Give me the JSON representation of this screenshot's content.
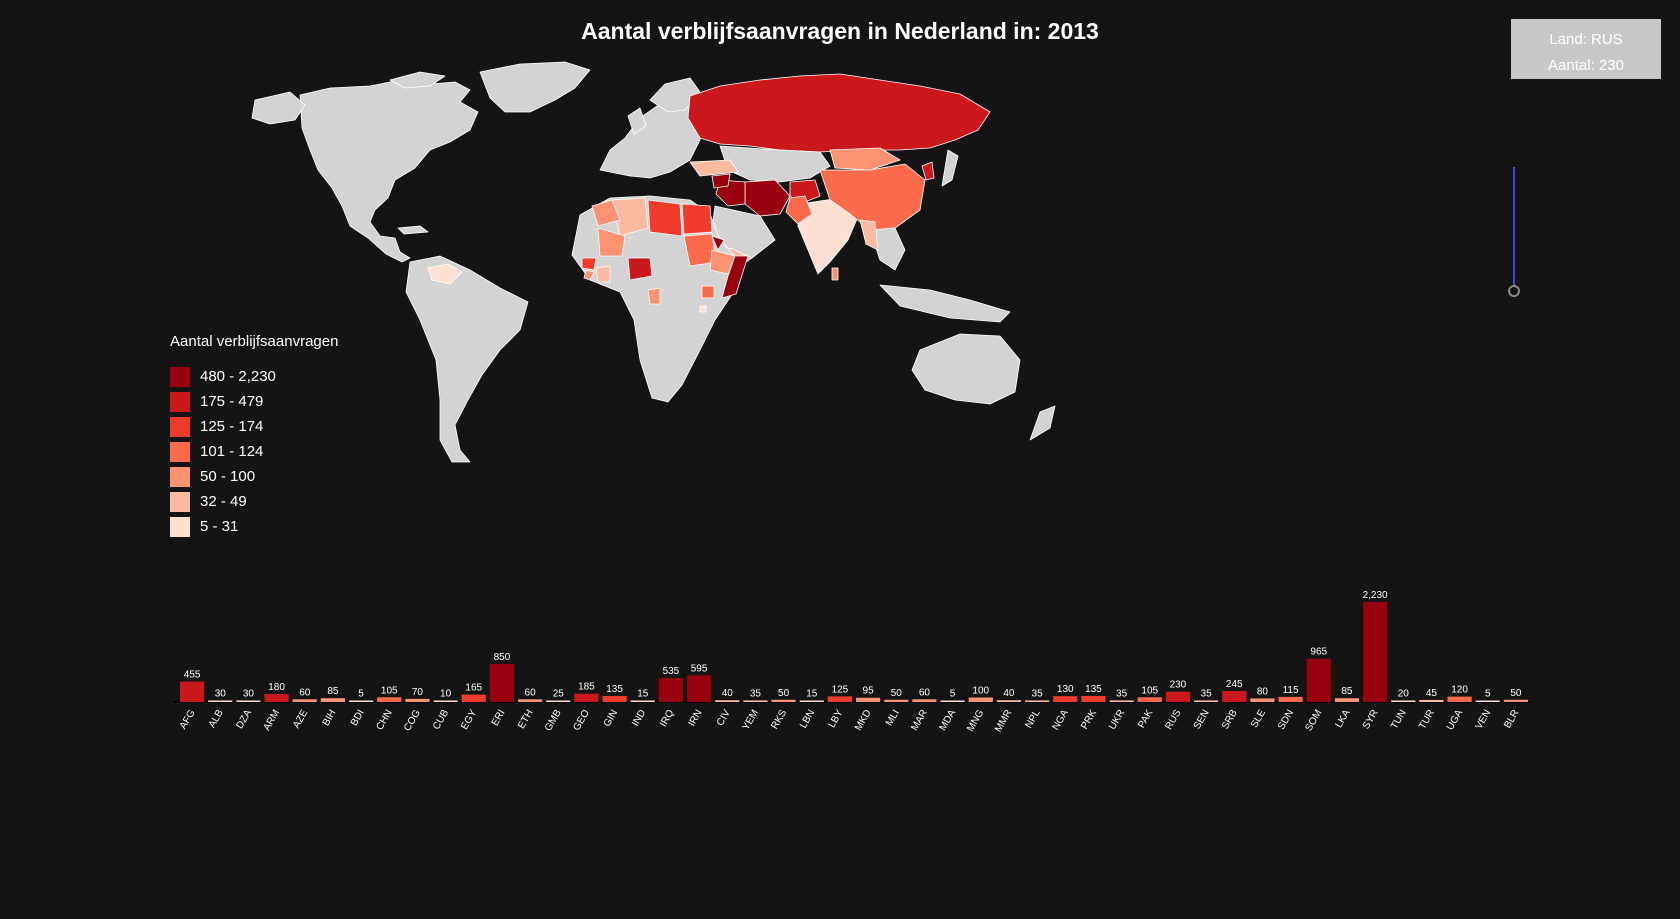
{
  "title": "Aantal verblijfsaanvragen in Nederland in: 2013",
  "tooltip": {
    "land": "Land: RUS",
    "aantal": "Aantal: 230"
  },
  "legend": {
    "title": "Aantal verblijfsaanvragen",
    "items": [
      {
        "label": "480 - 2,230",
        "color": "#99000d"
      },
      {
        "label": "175 - 479",
        "color": "#cb181d"
      },
      {
        "label": "125 - 174",
        "color": "#ef3b2c"
      },
      {
        "label": "101 - 124",
        "color": "#fb6a4a"
      },
      {
        "label": "50 - 100",
        "color": "#fc9272"
      },
      {
        "label": "32 - 49",
        "color": "#fcbba1"
      },
      {
        "label": "5 - 31",
        "color": "#fee0d2"
      }
    ]
  },
  "colors": {
    "no_data": "#d3d3d3",
    "background": "#141414",
    "slider": "#3a53d6"
  },
  "chart_data": {
    "type": "bar",
    "categories": [
      "AFG",
      "ALB",
      "DZA",
      "ARM",
      "AZE",
      "BIH",
      "BDI",
      "CHN",
      "COG",
      "CUB",
      "EGY",
      "ERI",
      "ETH",
      "GMB",
      "GEO",
      "GIN",
      "IND",
      "IRQ",
      "IRN",
      "CIV",
      "YEM",
      "RKS",
      "LBN",
      "LBY",
      "MKD",
      "MLI",
      "MAR",
      "MDA",
      "MNG",
      "MMR",
      "NPL",
      "NGA",
      "PRK",
      "UKR",
      "PAK",
      "RUS",
      "SEN",
      "SRB",
      "SLE",
      "SDN",
      "SOM",
      "LKA",
      "SYR",
      "TUN",
      "TUR",
      "UGA",
      "VEN",
      "BLR"
    ],
    "values": [
      455,
      30,
      30,
      180,
      60,
      85,
      5,
      105,
      70,
      10,
      165,
      850,
      60,
      25,
      185,
      135,
      15,
      535,
      595,
      40,
      35,
      50,
      15,
      125,
      95,
      50,
      60,
      5,
      100,
      40,
      35,
      130,
      135,
      35,
      105,
      230,
      35,
      245,
      80,
      115,
      965,
      85,
      2230,
      20,
      45,
      120,
      5,
      50
    ],
    "value_labels": [
      "455",
      "30",
      "30",
      "180",
      "60",
      "85",
      "5",
      "105",
      "70",
      "10",
      "165",
      "850",
      "60",
      "25",
      "185",
      "135",
      "15",
      "535",
      "595",
      "40",
      "35",
      "50",
      "15",
      "125",
      "95",
      "50",
      "60",
      "5",
      "100",
      "40",
      "35",
      "130",
      "135",
      "35",
      "105",
      "230",
      "35",
      "245",
      "80",
      "115",
      "965",
      "85",
      "2,230",
      "20",
      "45",
      "120",
      "5",
      "50"
    ],
    "ylim": [
      0,
      2230
    ],
    "color_scale": [
      480,
      175,
      125,
      101,
      50,
      32,
      5
    ]
  }
}
